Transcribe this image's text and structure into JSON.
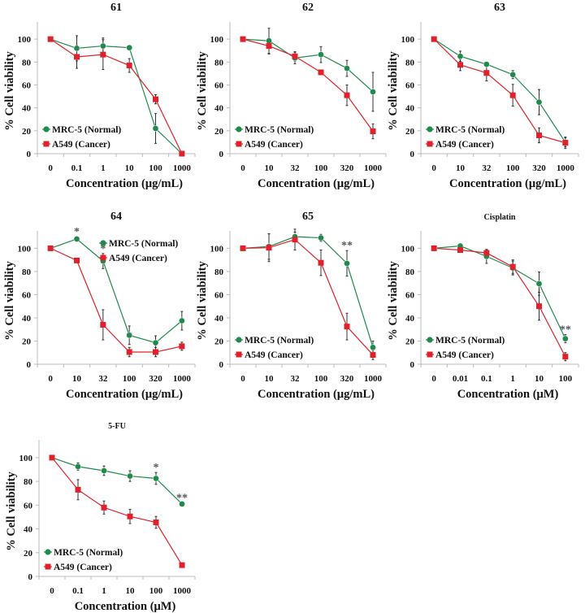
{
  "colors": {
    "normal": "#1f8a4c",
    "cancer": "#e0202a",
    "axis": "#bbbbbb",
    "error": "#333333"
  },
  "legend": {
    "normal": "MRC-5 (Normal)",
    "cancer": "A549 (Cancer)"
  },
  "chart_data": [
    {
      "type": "line",
      "title": "61",
      "title_style": "large",
      "xlabel": "Concentration (μg/mL)",
      "ylabel": "% Cell viability",
      "categories": [
        "0",
        "0.1",
        "1",
        "10",
        "100",
        "1000"
      ],
      "ylim": [
        0,
        115
      ],
      "yticks": [
        "0",
        "20",
        "40",
        "60",
        "80",
        "100"
      ],
      "legend_position": "bottom-left",
      "series": [
        {
          "name": "MRC-5 (Normal)",
          "values": [
            100,
            92,
            94,
            92.5,
            22,
            0
          ],
          "errors": [
            0,
            11,
            7,
            1,
            13,
            0
          ]
        },
        {
          "name": "A549 (Cancer)",
          "values": [
            100,
            84.5,
            86.5,
            77,
            47.5,
            0
          ],
          "errors": [
            0,
            10,
            13,
            6,
            4,
            0
          ]
        }
      ],
      "annotations": []
    },
    {
      "type": "line",
      "title": "62",
      "title_style": "large",
      "xlabel": "Concentration (μg/mL)",
      "ylabel": "% Cell viability",
      "categories": [
        "0",
        "10",
        "32",
        "100",
        "320",
        "1000"
      ],
      "ylim": [
        0,
        115
      ],
      "yticks": [
        "0",
        "20",
        "40",
        "60",
        "80",
        "100"
      ],
      "legend_position": "bottom-left",
      "series": [
        {
          "name": "MRC-5 (Normal)",
          "values": [
            100,
            98.5,
            83.5,
            86.5,
            74.5,
            54
          ],
          "errors": [
            0,
            11,
            5,
            7,
            7,
            17
          ]
        },
        {
          "name": "A549 (Cancer)",
          "values": [
            100,
            94,
            85,
            71,
            51,
            19.5
          ],
          "errors": [
            0,
            7,
            4,
            0,
            9,
            6.5
          ]
        }
      ],
      "annotations": []
    },
    {
      "type": "line",
      "title": "63",
      "title_style": "large",
      "xlabel": "Concentration (μg/mL)",
      "ylabel": "% Cell viability",
      "categories": [
        "0",
        "10",
        "32",
        "100",
        "320",
        "1000"
      ],
      "ylim": [
        0,
        115
      ],
      "yticks": [
        "0",
        "20",
        "40",
        "60",
        "80",
        "100"
      ],
      "legend_position": "bottom-left",
      "series": [
        {
          "name": "MRC-5 (Normal)",
          "values": [
            100,
            85,
            78,
            69,
            45,
            10
          ],
          "errors": [
            0,
            4.5,
            0,
            3.5,
            11,
            4
          ]
        },
        {
          "name": "A549 (Cancer)",
          "values": [
            100,
            77.5,
            70.5,
            51,
            16,
            9.5
          ],
          "errors": [
            0,
            5,
            7,
            9.5,
            6.5,
            5
          ]
        }
      ],
      "annotations": []
    },
    {
      "type": "line",
      "title": "64",
      "title_style": "large",
      "xlabel": "Concentration (μg/mL)",
      "ylabel": "% Cell viability",
      "categories": [
        "0",
        "10",
        "32",
        "100",
        "320",
        "1000"
      ],
      "ylim": [
        0,
        115
      ],
      "yticks": [
        "0",
        "20",
        "40",
        "60",
        "80",
        "100"
      ],
      "legend_position": "top-right",
      "series": [
        {
          "name": "MRC-5 (Normal)",
          "values": [
            100,
            108,
            89,
            25,
            18.5,
            37.5
          ],
          "errors": [
            0,
            2,
            6.5,
            8,
            6,
            8
          ]
        },
        {
          "name": "A549 (Cancer)",
          "values": [
            100,
            89.5,
            34,
            10.5,
            10.5,
            15.5
          ],
          "errors": [
            0,
            0,
            13,
            4,
            4,
            3.5
          ]
        }
      ],
      "annotations": [
        {
          "category_index": 1,
          "text": "*"
        },
        {
          "category_index": 2,
          "text": "*"
        }
      ]
    },
    {
      "type": "line",
      "title": "65",
      "title_style": "large",
      "xlabel": "Concentration (μg/mL)",
      "ylabel": "% Cell viability",
      "categories": [
        "0",
        "10",
        "32",
        "100",
        "320",
        "1000"
      ],
      "ylim": [
        0,
        115
      ],
      "yticks": [
        "0",
        "20",
        "40",
        "60",
        "80",
        "100"
      ],
      "legend_position": "bottom-left",
      "series": [
        {
          "name": "MRC-5 (Normal)",
          "values": [
            100,
            101.5,
            110,
            109,
            87,
            14.5
          ],
          "errors": [
            0,
            11,
            4,
            3,
            11,
            5.5
          ]
        },
        {
          "name": "A549 (Cancer)",
          "values": [
            100,
            100.5,
            107.5,
            87.5,
            32.5,
            8
          ],
          "errors": [
            0,
            12,
            9,
            11,
            11.5,
            4
          ]
        }
      ],
      "annotations": [
        {
          "category_index": 4,
          "text": "**"
        }
      ]
    },
    {
      "type": "line",
      "title": "Cisplatin",
      "title_style": "small",
      "xlabel": "Concentration (μM)",
      "ylabel": "% Cell viability",
      "categories": [
        "0",
        "0.01",
        "0.1",
        "1",
        "10",
        "100"
      ],
      "ylim": [
        0,
        115
      ],
      "yticks": [
        "0",
        "20",
        "40",
        "60",
        "80",
        "100"
      ],
      "legend_position": "bottom-left",
      "series": [
        {
          "name": "MRC-5 (Normal)",
          "values": [
            100,
            102,
            93,
            83,
            69.5,
            22
          ],
          "errors": [
            0,
            2,
            6,
            6,
            10,
            3.5
          ]
        },
        {
          "name": "A549 (Cancer)",
          "values": [
            100,
            98.5,
            96,
            84,
            50,
            6.5
          ],
          "errors": [
            0,
            2,
            3,
            6,
            12,
            3.5
          ]
        }
      ],
      "annotations": [
        {
          "category_index": 5,
          "text": "**"
        }
      ]
    },
    {
      "type": "line",
      "title": "5-FU",
      "title_style": "small",
      "xlabel": "Concentration (μM)",
      "ylabel": "% Cell viability",
      "categories": [
        "0",
        "0.1",
        "1",
        "10",
        "100",
        "1000"
      ],
      "ylim": [
        0,
        115
      ],
      "yticks": [
        "0",
        "20",
        "40",
        "60",
        "80",
        "100"
      ],
      "legend_position": "bottom-left",
      "series": [
        {
          "name": "MRC-5 (Normal)",
          "values": [
            100,
            92.5,
            89,
            84.5,
            82.5,
            61
          ],
          "errors": [
            0,
            3,
            4,
            4.5,
            5,
            1
          ]
        },
        {
          "name": "A549 (Cancer)",
          "values": [
            100,
            73,
            58,
            50.5,
            45.5,
            9.5
          ],
          "errors": [
            0,
            8.5,
            5.5,
            6,
            5,
            0
          ]
        }
      ],
      "annotations": [
        {
          "category_index": 4,
          "text": "*"
        },
        {
          "category_index": 5,
          "text": "**"
        }
      ]
    }
  ]
}
